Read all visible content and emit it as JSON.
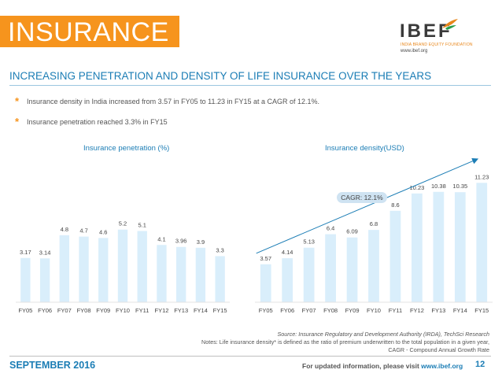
{
  "header": {
    "title": "INSURANCE",
    "logo_name": "IBEF",
    "logo_tagline": "INDIA BRAND EQUITY FOUNDATION",
    "logo_url": "www.ibef.org"
  },
  "subtitle": "INCREASING PENETRATION AND DENSITY OF LIFE INSURANCE OVER THE YEARS",
  "bullets": [
    "Insurance density in India increased from 3.57 in FY05 to 11.23 in FY15 at a CAGR of  12.1%.",
    "Insurance penetration reached 3.3% in FY15"
  ],
  "chart_data": [
    {
      "type": "bar",
      "title": "Insurance penetration (%)",
      "categories": [
        "FY05",
        "FY06",
        "FY07",
        "FY08",
        "FY09",
        "FY10",
        "FY11",
        "FY12",
        "FY13",
        "FY14",
        "FY15"
      ],
      "values": [
        3.17,
        3.14,
        4.8,
        4.7,
        4.6,
        5.2,
        5.1,
        4.1,
        3.96,
        3.9,
        3.3
      ],
      "labels": [
        "3.17",
        "3.14",
        "4.8",
        "4.7",
        "4.6",
        "5.2",
        "5.1",
        "4.1",
        "3.96",
        "3.9",
        "3.3"
      ],
      "xlabel": "",
      "ylabel": "",
      "ylim": [
        0,
        6.2
      ],
      "color": "#d9eefb"
    },
    {
      "type": "bar",
      "title": "Insurance density(USD)",
      "categories": [
        "FY05",
        "FY06",
        "FY07",
        "FY08",
        "FY09",
        "FY10",
        "FY11",
        "FY12",
        "FY13",
        "FY14",
        "FY15"
      ],
      "values": [
        3.57,
        4.14,
        5.13,
        6.4,
        6.09,
        6.8,
        8.6,
        10.23,
        10.38,
        10.35,
        11.23
      ],
      "labels": [
        "3.57",
        "4.14",
        "5.13",
        "6.4",
        "6.09",
        "6.8",
        "8.6",
        "10.23",
        "10.38",
        "10.35",
        "11.23"
      ],
      "xlabel": "",
      "ylabel": "",
      "ylim": [
        0,
        11.4
      ],
      "color": "#d9eefb",
      "annotation": "CAGR: 12.1%",
      "trend_color": "#1b7db5"
    }
  ],
  "notes": {
    "source": "Source: Insurance Regulatory and Development Authority (IRDA), TechSci Research",
    "definition": "Notes: Life insurance density* is defined as the ratio of premium underwritten to the total population in a given year,",
    "cagr_def": "CAGR - Compound Annual Growth Rate"
  },
  "footer": {
    "date": "SEPTEMBER 2016",
    "info_prefix": "For updated information, please visit ",
    "info_url": "www.ibef.org",
    "page": "12"
  }
}
